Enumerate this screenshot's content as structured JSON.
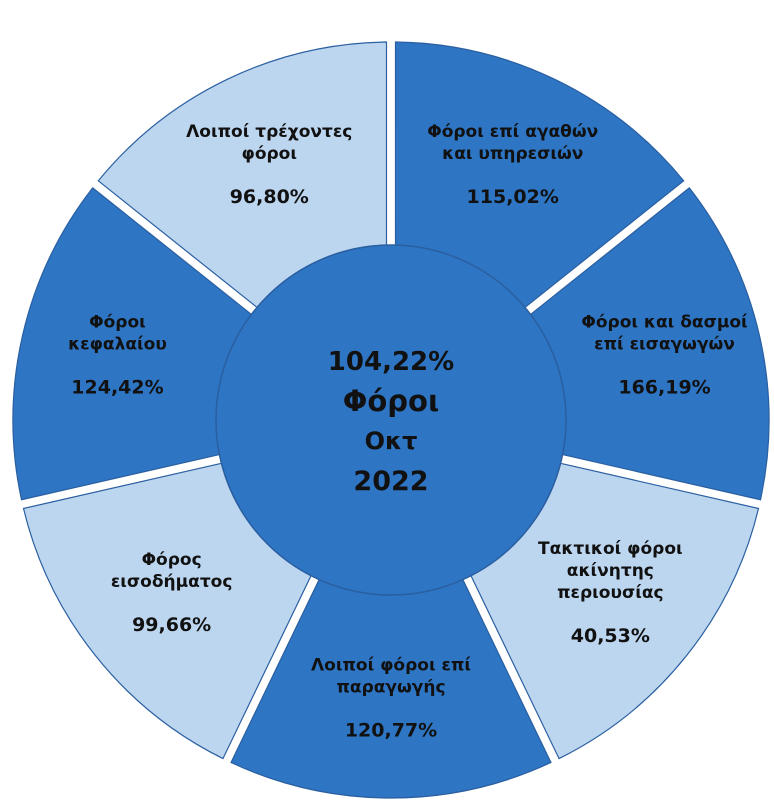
{
  "chart_data": {
    "type": "pie",
    "center": {
      "value": "104,22%",
      "title": "Φόροι",
      "month": "Οκτ",
      "year": "2022"
    },
    "segments": [
      {
        "lines": [
          "Φόροι επί αγαθών",
          "και υπηρεσιών"
        ],
        "value": "115,02%",
        "color": "#2e75c4"
      },
      {
        "lines": [
          "Φόροι και δασμοί",
          "επί εισαγωγών"
        ],
        "value": "166,19%",
        "color": "#2e75c4"
      },
      {
        "lines": [
          "Τακτικοί φόροι",
          "ακίνητης",
          "περιουσίας"
        ],
        "value": "40,53%",
        "color": "#bdd6f0"
      },
      {
        "lines": [
          "Λοιποί φόροι επί",
          "παραγωγής"
        ],
        "value": "120,77%",
        "color": "#2e75c4"
      },
      {
        "lines": [
          "Φόρος",
          "εισοδήματος"
        ],
        "value": "99,66%",
        "color": "#bdd6f0"
      },
      {
        "lines": [
          "Φόροι",
          "κεφαλαίου"
        ],
        "value": "124,42%",
        "color": "#2e75c4"
      },
      {
        "lines": [
          "Λοιποί τρέχοντες",
          "φόροι"
        ],
        "value": "96,80%",
        "color": "#bdd6f0"
      }
    ],
    "colors": {
      "dark": "#2e75c4",
      "light": "#bdd6f0",
      "center": "#2e75c4",
      "outline": "#2a5fa0"
    }
  }
}
